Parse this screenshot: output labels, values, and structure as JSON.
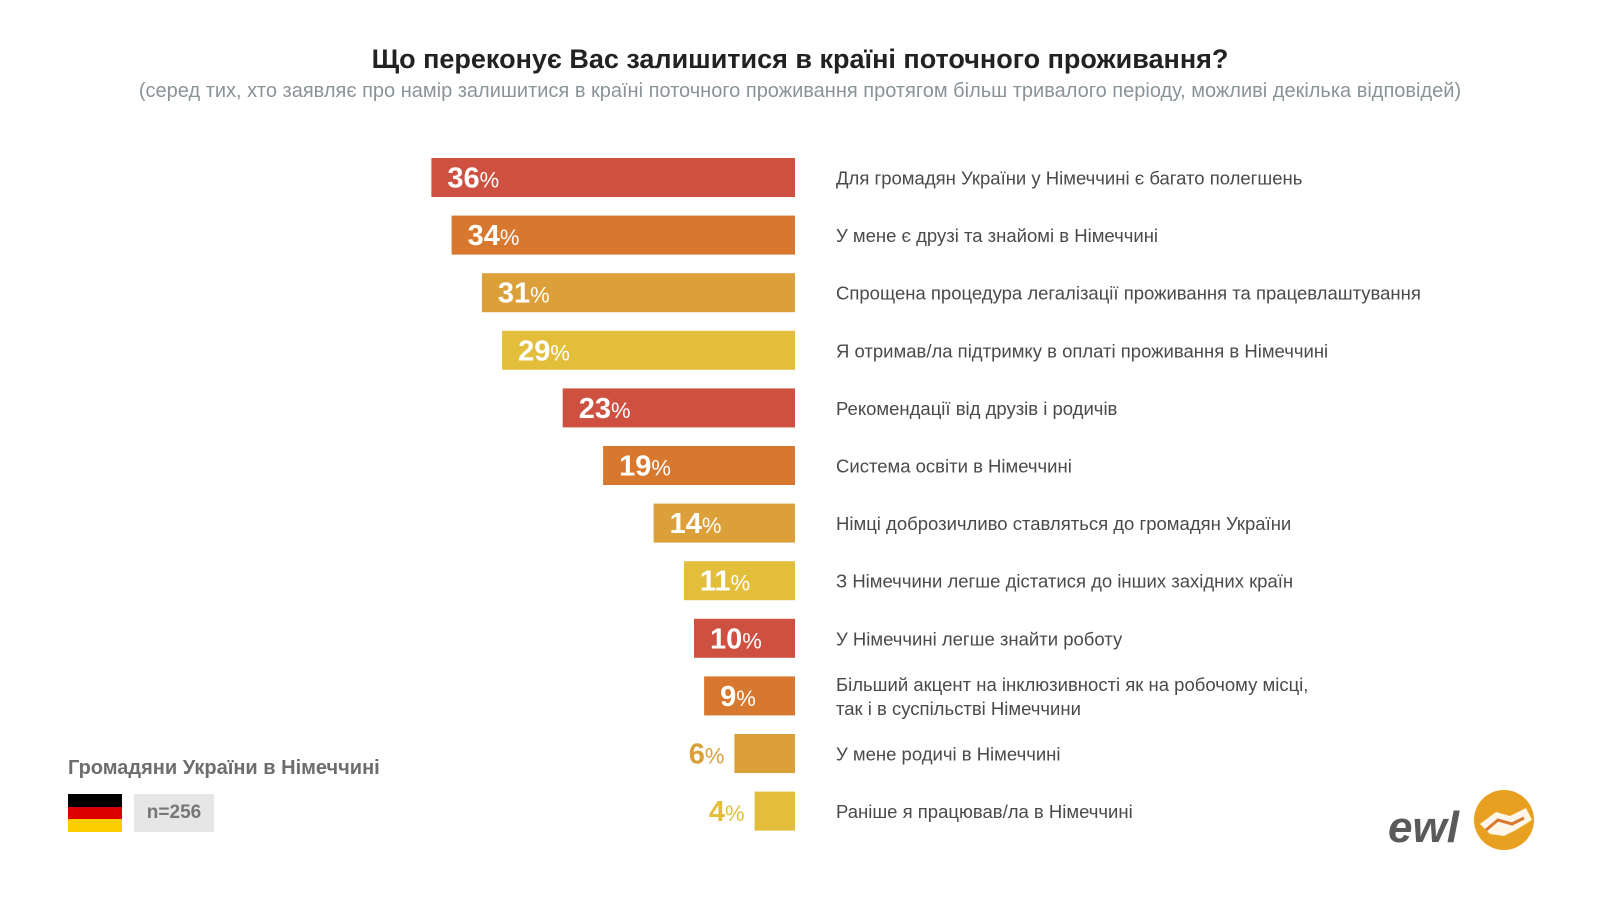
{
  "title": "Що переконує Вас залишитися в країні поточного проживання?",
  "subtitle": "(серед тих, хто заявляє про намір залишитися в країні поточного проживання протягом більш тривалого періоду, можливі декілька відповідей)",
  "group_label": "Громадяни України в Німеччині",
  "sample": "n=256",
  "logo": {
    "text": "ewl",
    "icon": "handshake-icon"
  },
  "flag_colors": [
    "#000000",
    "#dd0000",
    "#ffce00"
  ],
  "colors": {
    "red": "#cd5040",
    "orange": "#d8782f",
    "amber": "#dba03a",
    "yellow": "#e2be3a"
  },
  "chart_data": {
    "type": "bar",
    "orientation": "horizontal",
    "unit": "%",
    "categories": [
      "Для громадян України у Німеччині є багато полегшень",
      "У мене є друзі та знайомі в Німеччині",
      "Спрощена процедура легалізації проживання та працевлаштування",
      "Я отримав/ла підтримку в оплаті проживання в Німеччині",
      "Рекомендації від друзів і родичів",
      "Система освіти в Німеччині",
      "Німці доброзичливо ставляться до громадян України",
      "З Німеччини легше дістатися до інших західних країн",
      "У Німеччині легше знайти роботу",
      "Більший акцент на інклюзивності як на робочому місці,\nтак і в суспільстві Німеччини",
      "У мене родичі в Німеччині",
      "Раніше я працював/ла в Німеччині"
    ],
    "values": [
      36,
      34,
      31,
      29,
      23,
      19,
      14,
      11,
      10,
      9,
      6,
      4
    ],
    "bar_colors": [
      "red",
      "orange",
      "amber",
      "yellow",
      "red",
      "orange",
      "amber",
      "yellow",
      "red",
      "orange",
      "amber",
      "yellow"
    ]
  }
}
